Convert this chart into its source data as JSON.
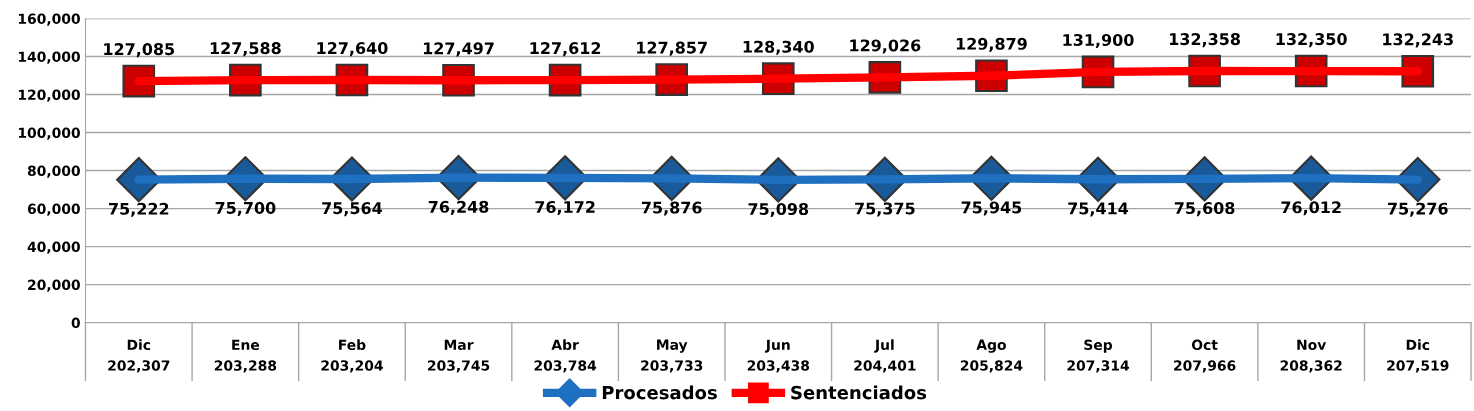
{
  "chart_data": {
    "type": "line",
    "categories": [
      "Dic",
      "Ene",
      "Feb",
      "Mar",
      "Abr",
      "May",
      "Jun",
      "Jul",
      "Ago",
      "Sep",
      "Oct",
      "Nov",
      "Dic"
    ],
    "series": [
      {
        "name": "Procesados",
        "color": "#1f70c1",
        "marker": "diamond",
        "values": [
          75222,
          75700,
          75564,
          76248,
          76172,
          75876,
          75098,
          75375,
          75945,
          75414,
          75608,
          76012,
          75276
        ],
        "value_labels": [
          "75,222",
          "75,700",
          "75,564",
          "76,248",
          "76,172",
          "75,876",
          "75,098",
          "75,375",
          "75,945",
          "75,414",
          "75,608",
          "76,012",
          "75,276"
        ]
      },
      {
        "name": "Sentenciados",
        "color": "#ff0000",
        "marker": "square",
        "values": [
          127085,
          127588,
          127640,
          127497,
          127612,
          127857,
          128340,
          129026,
          129879,
          131900,
          132358,
          132350,
          132243
        ],
        "value_labels": [
          "127,085",
          "127,588",
          "127,640",
          "127,497",
          "127,612",
          "127,857",
          "128,340",
          "129,026",
          "129,879",
          "131,900",
          "132,358",
          "132,350",
          "132,243"
        ]
      }
    ],
    "totals": [
      "202,307",
      "203,288",
      "203,204",
      "203,745",
      "203,784",
      "203,733",
      "203,438",
      "204,401",
      "205,824",
      "207,314",
      "207,966",
      "208,362",
      "207,519"
    ],
    "ylim": [
      0,
      160000
    ],
    "yticks": [
      0,
      {
        "value": 20000,
        "label": "20,000"
      },
      {
        "value": 40000,
        "label": "40,000"
      },
      {
        "value": 60000,
        "label": "60,000"
      },
      {
        "value": 80000,
        "label": "80,000"
      },
      {
        "value": 100000,
        "label": "100,000"
      },
      {
        "value": 120000,
        "label": "120,000"
      },
      {
        "value": 140000,
        "label": "140,000"
      },
      {
        "value": 160000,
        "label": "160,000"
      }
    ],
    "grid": "y",
    "legend": "bottom"
  }
}
